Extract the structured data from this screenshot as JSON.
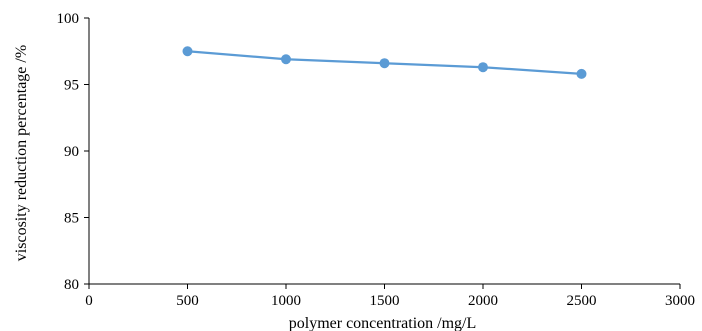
{
  "chart_data": {
    "type": "line",
    "x": [
      500,
      1000,
      1500,
      2000,
      2500
    ],
    "series": [
      {
        "values": [
          97.5,
          96.9,
          96.6,
          96.3,
          95.8
        ]
      }
    ],
    "xlabel": "polymer concentration /mg/L",
    "ylabel": "viscosity reduction percentage /%",
    "xlim": [
      0,
      3000
    ],
    "ylim": [
      80,
      100
    ],
    "xticks": [
      "0",
      "500",
      "1000",
      "1500",
      "2000",
      "2500",
      "3000"
    ],
    "yticks": [
      "80",
      "85",
      "90",
      "95",
      "100"
    ],
    "grid": false,
    "legend": "none",
    "line_color": "#5b9bd5",
    "marker_color": "#5b9bd5"
  }
}
